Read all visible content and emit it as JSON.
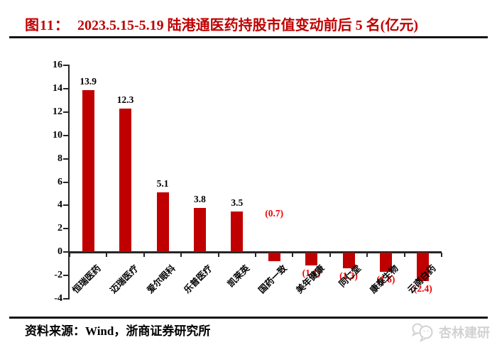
{
  "header": {
    "figure_label": "图11：",
    "title": "2023.5.15-5.19 陆港通医药持股市值变动前后 5 名(亿元)",
    "accent_color": "#c00000"
  },
  "footer": {
    "source": "资料来源：Wind，浙商证券研究所"
  },
  "watermark": {
    "icon": "chat-bubbles-icon",
    "text": "杏林建研",
    "color": "#d2d2d2"
  },
  "chart_data": {
    "type": "bar",
    "title": "2023.5.15-5.19 陆港通医药持股市值变动前后 5 名(亿元)",
    "categories": [
      "恒瑞医药",
      "迈瑞医疗",
      "爱尔眼科",
      "乐普医疗",
      "凯莱英",
      "国药一致",
      "美年健康",
      "同仁堂",
      "康泰生物",
      "云南白药"
    ],
    "values": [
      13.9,
      12.3,
      5.1,
      3.8,
      3.5,
      -0.7,
      -1.1,
      -1.3,
      -1.6,
      -2.4
    ],
    "point_labels": [
      "13.9",
      "12.3",
      "5.1",
      "3.8",
      "3.5",
      "(0.7)",
      "(1.1)",
      "(1.3)",
      "(1.6)",
      "(2.4)"
    ],
    "xlabel": "",
    "ylabel": "",
    "ylim": [
      -4,
      16
    ],
    "yticks": [
      16,
      14,
      12,
      10,
      8,
      6,
      4,
      2,
      0,
      -2,
      -4
    ],
    "grid": false,
    "legend": false,
    "bar_color": "#c00000",
    "axis_color": "#262626",
    "positive_label_color": "#000000",
    "negative_label_color": "#ee0000",
    "layout_hints": {
      "label_dy_override": {
        "5": -78
      }
    }
  }
}
